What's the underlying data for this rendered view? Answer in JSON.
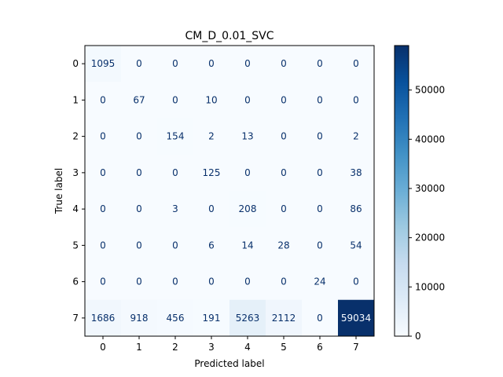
{
  "chart_data": {
    "type": "heatmap",
    "title": "CM_D_0.01_SVC",
    "xlabel": "Predicted label",
    "ylabel": "True label",
    "x_categories": [
      "0",
      "1",
      "2",
      "3",
      "4",
      "5",
      "6",
      "7"
    ],
    "y_categories": [
      "0",
      "1",
      "2",
      "3",
      "4",
      "5",
      "6",
      "7"
    ],
    "matrix": [
      [
        1095,
        0,
        0,
        0,
        0,
        0,
        0,
        0
      ],
      [
        0,
        67,
        0,
        10,
        0,
        0,
        0,
        0
      ],
      [
        0,
        0,
        154,
        2,
        13,
        0,
        0,
        2
      ],
      [
        0,
        0,
        0,
        125,
        0,
        0,
        0,
        38
      ],
      [
        0,
        0,
        3,
        0,
        208,
        0,
        0,
        86
      ],
      [
        0,
        0,
        0,
        6,
        14,
        28,
        0,
        54
      ],
      [
        0,
        0,
        0,
        0,
        0,
        0,
        24,
        0
      ],
      [
        1686,
        918,
        456,
        191,
        5263,
        2112,
        0,
        59034
      ]
    ],
    "colormap": "Blues",
    "colorbar": {
      "min": 0,
      "max": 59034,
      "ticks": [
        0,
        10000,
        20000,
        30000,
        40000,
        50000
      ]
    },
    "grid": false
  },
  "colors": {
    "text_dark": "#08306b",
    "text_light": "#f7fbff"
  }
}
